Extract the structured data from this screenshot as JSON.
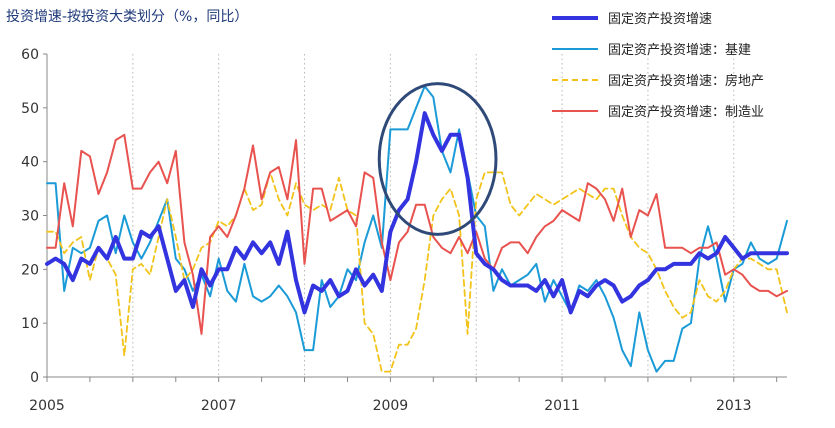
{
  "chart_data": {
    "type": "line",
    "title": "投资增速-按投资大类划分（%，同比）",
    "xlabel": "",
    "ylabel": "",
    "ylim": [
      0,
      60
    ],
    "yticks": [
      0,
      10,
      20,
      30,
      40,
      50,
      60
    ],
    "xlim": [
      2005.0,
      2013.62
    ],
    "xticks": [
      "2005",
      "2007",
      "2009",
      "2011",
      "2013"
    ],
    "xtick_values": [
      2005,
      2007,
      2009,
      2011,
      2013
    ],
    "grid": "vertical dotted",
    "legend_position": "top-right",
    "series": [
      {
        "name": "固定资产投资增速",
        "color": "#3333e0",
        "style": "solid-thick",
        "x": [
          2005.0,
          2005.1,
          2005.2,
          2005.3,
          2005.4,
          2005.5,
          2005.6,
          2005.7,
          2005.8,
          2005.9,
          2006.0,
          2006.1,
          2006.2,
          2006.3,
          2006.4,
          2006.5,
          2006.6,
          2006.7,
          2006.8,
          2006.9,
          2007.0,
          2007.1,
          2007.2,
          2007.3,
          2007.4,
          2007.5,
          2007.6,
          2007.7,
          2007.8,
          2007.9,
          2008.0,
          2008.1,
          2008.2,
          2008.3,
          2008.4,
          2008.5,
          2008.6,
          2008.7,
          2008.8,
          2008.9,
          2009.0,
          2009.1,
          2009.2,
          2009.3,
          2009.4,
          2009.5,
          2009.6,
          2009.7,
          2009.8,
          2009.9,
          2010.0,
          2010.1,
          2010.2,
          2010.3,
          2010.4,
          2010.5,
          2010.6,
          2010.7,
          2010.8,
          2010.9,
          2011.0,
          2011.1,
          2011.2,
          2011.3,
          2011.4,
          2011.5,
          2011.6,
          2011.7,
          2011.8,
          2011.9,
          2012.0,
          2012.1,
          2012.2,
          2012.3,
          2012.4,
          2012.5,
          2012.6,
          2012.7,
          2012.8,
          2012.9,
          2013.0,
          2013.1,
          2013.2,
          2013.3,
          2013.4,
          2013.5,
          2013.62
        ],
        "values": [
          21,
          22,
          21,
          18,
          22,
          21,
          24,
          22,
          26,
          22,
          22,
          27,
          26,
          28,
          22,
          16,
          18,
          13,
          20,
          17,
          20,
          20,
          24,
          22,
          25,
          23,
          25,
          21,
          27,
          18,
          12,
          17,
          16,
          18,
          15,
          16,
          20,
          17,
          19,
          16,
          27,
          31,
          33,
          40,
          49,
          45,
          42,
          45,
          45,
          37,
          23,
          21,
          20,
          18,
          17,
          17,
          17,
          16,
          18,
          15,
          18,
          12,
          16,
          15,
          17,
          18,
          17,
          14,
          15,
          17,
          18,
          20,
          20,
          21,
          21,
          21,
          23,
          22,
          23,
          26,
          24,
          22,
          23,
          23,
          23,
          23,
          23
        ]
      },
      {
        "name": "固定资产投资增速：基建",
        "color": "#1a9bd7",
        "style": "solid",
        "x": [
          2005.0,
          2005.1,
          2005.2,
          2005.3,
          2005.4,
          2005.5,
          2005.6,
          2005.7,
          2005.8,
          2005.9,
          2006.0,
          2006.1,
          2006.2,
          2006.3,
          2006.4,
          2006.5,
          2006.6,
          2006.7,
          2006.8,
          2006.9,
          2007.0,
          2007.1,
          2007.2,
          2007.3,
          2007.4,
          2007.5,
          2007.6,
          2007.7,
          2007.8,
          2007.9,
          2008.0,
          2008.1,
          2008.2,
          2008.3,
          2008.4,
          2008.5,
          2008.6,
          2008.7,
          2008.8,
          2008.9,
          2009.0,
          2009.1,
          2009.2,
          2009.3,
          2009.4,
          2009.5,
          2009.6,
          2009.7,
          2009.8,
          2009.9,
          2010.0,
          2010.1,
          2010.2,
          2010.3,
          2010.4,
          2010.5,
          2010.6,
          2010.7,
          2010.8,
          2010.9,
          2011.0,
          2011.1,
          2011.2,
          2011.3,
          2011.4,
          2011.5,
          2011.6,
          2011.7,
          2011.8,
          2011.9,
          2012.0,
          2012.1,
          2012.2,
          2012.3,
          2012.4,
          2012.5,
          2012.6,
          2012.7,
          2012.8,
          2012.9,
          2013.0,
          2013.1,
          2013.2,
          2013.3,
          2013.4,
          2013.5,
          2013.62
        ],
        "values": [
          36,
          36,
          16,
          24,
          23,
          24,
          29,
          30,
          23,
          30,
          25,
          22,
          25,
          29,
          33,
          22,
          20,
          16,
          19,
          15,
          22,
          16,
          14,
          21,
          15,
          14,
          15,
          17,
          15,
          12,
          5,
          5,
          18,
          13,
          15,
          20,
          18,
          25,
          30,
          24,
          46,
          46,
          46,
          50,
          54,
          52,
          42,
          38,
          46,
          38,
          30,
          28,
          16,
          20,
          17,
          18,
          19,
          21,
          14,
          18,
          15,
          12,
          17,
          16,
          18,
          15,
          11,
          5,
          2,
          12,
          5,
          1,
          3,
          3,
          9,
          10,
          22,
          28,
          22,
          14,
          20,
          21,
          25,
          22,
          21,
          22,
          29
        ]
      },
      {
        "name": "固定资产投资增速：房地产",
        "color": "#f2c31a",
        "style": "dashed",
        "x": [
          2005.0,
          2005.1,
          2005.2,
          2005.3,
          2005.4,
          2005.5,
          2005.6,
          2005.7,
          2005.8,
          2005.9,
          2006.0,
          2006.1,
          2006.2,
          2006.3,
          2006.4,
          2006.5,
          2006.6,
          2006.7,
          2006.8,
          2006.9,
          2007.0,
          2007.1,
          2007.2,
          2007.3,
          2007.4,
          2007.5,
          2007.6,
          2007.7,
          2007.8,
          2007.9,
          2008.0,
          2008.1,
          2008.2,
          2008.3,
          2008.4,
          2008.5,
          2008.6,
          2008.7,
          2008.8,
          2008.9,
          2009.0,
          2009.1,
          2009.2,
          2009.3,
          2009.4,
          2009.5,
          2009.6,
          2009.7,
          2009.8,
          2009.9,
          2010.0,
          2010.1,
          2010.2,
          2010.3,
          2010.4,
          2010.5,
          2010.6,
          2010.7,
          2010.8,
          2010.9,
          2011.0,
          2011.1,
          2011.2,
          2011.3,
          2011.4,
          2011.5,
          2011.6,
          2011.7,
          2011.8,
          2011.9,
          2012.0,
          2012.1,
          2012.2,
          2012.3,
          2012.4,
          2012.5,
          2012.6,
          2012.7,
          2012.8,
          2012.9,
          2013.0,
          2013.1,
          2013.2,
          2013.3,
          2013.4,
          2013.5,
          2013.62
        ],
        "values": [
          27,
          27,
          23,
          25,
          26,
          18,
          24,
          22,
          19,
          4,
          20,
          21,
          19,
          26,
          33,
          26,
          18,
          20,
          24,
          25,
          29,
          28,
          30,
          35,
          31,
          32,
          38,
          33,
          30,
          36,
          32,
          31,
          32,
          31,
          37,
          31,
          30,
          10,
          8,
          1,
          1,
          6,
          6,
          9,
          18,
          30,
          33,
          35,
          30,
          8,
          33,
          38,
          38,
          38,
          32,
          30,
          32,
          34,
          33,
          32,
          33,
          34,
          35,
          34,
          33,
          35,
          35,
          30,
          26,
          24,
          23,
          20,
          16,
          13,
          11,
          12,
          18,
          15,
          14,
          16,
          20,
          22,
          22,
          21,
          20,
          20,
          12
        ]
      },
      {
        "name": "固定资产投资增速：制造业",
        "color": "#e8524f",
        "style": "solid",
        "x": [
          2005.0,
          2005.1,
          2005.2,
          2005.3,
          2005.4,
          2005.5,
          2005.6,
          2005.7,
          2005.8,
          2005.9,
          2006.0,
          2006.1,
          2006.2,
          2006.3,
          2006.4,
          2006.5,
          2006.6,
          2006.7,
          2006.8,
          2006.9,
          2007.0,
          2007.1,
          2007.2,
          2007.3,
          2007.4,
          2007.5,
          2007.6,
          2007.7,
          2007.8,
          2007.9,
          2008.0,
          2008.1,
          2008.2,
          2008.3,
          2008.4,
          2008.5,
          2008.6,
          2008.7,
          2008.8,
          2008.9,
          2009.0,
          2009.1,
          2009.2,
          2009.3,
          2009.4,
          2009.5,
          2009.6,
          2009.7,
          2009.8,
          2009.9,
          2010.0,
          2010.1,
          2010.2,
          2010.3,
          2010.4,
          2010.5,
          2010.6,
          2010.7,
          2010.8,
          2010.9,
          2011.0,
          2011.1,
          2011.2,
          2011.3,
          2011.4,
          2011.5,
          2011.6,
          2011.7,
          2011.8,
          2011.9,
          2012.0,
          2012.1,
          2012.2,
          2012.3,
          2012.4,
          2012.5,
          2012.6,
          2012.7,
          2012.8,
          2012.9,
          2013.0,
          2013.1,
          2013.2,
          2013.3,
          2013.4,
          2013.5,
          2013.62
        ],
        "values": [
          24,
          24,
          36,
          28,
          42,
          41,
          34,
          38,
          44,
          45,
          35,
          35,
          38,
          40,
          36,
          42,
          25,
          19,
          8,
          26,
          28,
          26,
          30,
          35,
          43,
          33,
          38,
          39,
          33,
          44,
          21,
          35,
          35,
          29,
          30,
          31,
          28,
          38,
          37,
          25,
          18,
          25,
          27,
          32,
          32,
          26,
          24,
          23,
          26,
          23,
          27,
          22,
          20,
          24,
          25,
          25,
          23,
          26,
          28,
          29,
          31,
          30,
          29,
          36,
          35,
          33,
          29,
          35,
          26,
          31,
          30,
          34,
          24,
          24,
          24,
          23,
          24,
          24,
          25,
          19,
          20,
          19,
          17,
          16,
          16,
          15,
          16
        ]
      }
    ],
    "annotations": [
      {
        "type": "ellipse",
        "center_x": 2009.55,
        "center_y": 40.5,
        "radius_x": 0.68,
        "radius_y": 14,
        "color": "#2f4a78"
      }
    ]
  }
}
